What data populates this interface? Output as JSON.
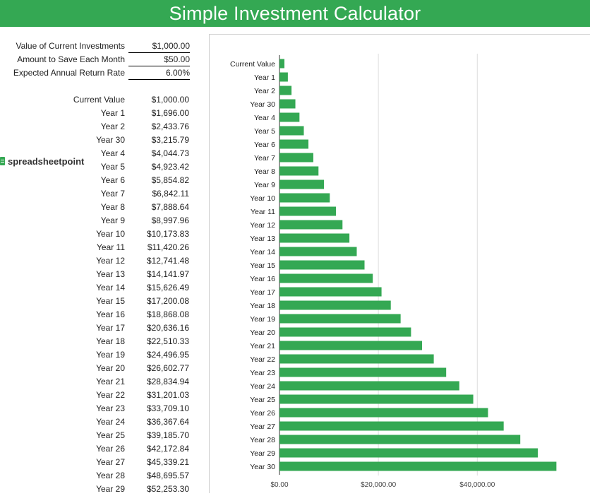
{
  "header": {
    "title": "Simple Investment Calculator"
  },
  "inputs": [
    {
      "label": "Value of Current Investments",
      "value": "$1,000.00"
    },
    {
      "label": "Amount to Save Each Month",
      "value": "$50.00"
    },
    {
      "label": "Expected Annual Return Rate",
      "value": "6.00%"
    }
  ],
  "brand": {
    "text": "spreadsheetpoint"
  },
  "table": {
    "rows": [
      {
        "label": "Current Value",
        "value": "$1,000.00"
      },
      {
        "label": "Year 1",
        "value": "$1,696.00"
      },
      {
        "label": "Year 2",
        "value": "$2,433.76"
      },
      {
        "label": "Year 30",
        "value": "$3,215.79"
      },
      {
        "label": "Year 4",
        "value": "$4,044.73"
      },
      {
        "label": "Year 5",
        "value": "$4,923.42"
      },
      {
        "label": "Year 6",
        "value": "$5,854.82"
      },
      {
        "label": "Year 7",
        "value": "$6,842.11"
      },
      {
        "label": "Year 8",
        "value": "$7,888.64"
      },
      {
        "label": "Year 9",
        "value": "$8,997.96"
      },
      {
        "label": "Year 10",
        "value": "$10,173.83"
      },
      {
        "label": "Year 11",
        "value": "$11,420.26"
      },
      {
        "label": "Year 12",
        "value": "$12,741.48"
      },
      {
        "label": "Year 13",
        "value": "$14,141.97"
      },
      {
        "label": "Year 14",
        "value": "$15,626.49"
      },
      {
        "label": "Year 15",
        "value": "$17,200.08"
      },
      {
        "label": "Year 16",
        "value": "$18,868.08"
      },
      {
        "label": "Year 17",
        "value": "$20,636.16"
      },
      {
        "label": "Year 18",
        "value": "$22,510.33"
      },
      {
        "label": "Year 19",
        "value": "$24,496.95"
      },
      {
        "label": "Year 20",
        "value": "$26,602.77"
      },
      {
        "label": "Year 21",
        "value": "$28,834.94"
      },
      {
        "label": "Year 22",
        "value": "$31,201.03"
      },
      {
        "label": "Year 23",
        "value": "$33,709.10"
      },
      {
        "label": "Year 24",
        "value": "$36,367.64"
      },
      {
        "label": "Year 25",
        "value": "$39,185.70"
      },
      {
        "label": "Year 26",
        "value": "$42,172.84"
      },
      {
        "label": "Year 27",
        "value": "$45,339.21"
      },
      {
        "label": "Year 28",
        "value": "$48,695.57"
      },
      {
        "label": "Year 29",
        "value": "$52,253.30"
      }
    ]
  },
  "colors": {
    "accent": "#34a853",
    "bar": "#34a853",
    "grid": "#dddddd"
  },
  "chart_data": {
    "type": "bar",
    "orientation": "horizontal",
    "categories": [
      "Current Value",
      "Year 1",
      "Year 2",
      "Year 30",
      "Year 4",
      "Year 5",
      "Year 6",
      "Year 7",
      "Year 8",
      "Year 9",
      "Year 10",
      "Year 11",
      "Year 12",
      "Year 13",
      "Year 14",
      "Year 15",
      "Year 16",
      "Year 17",
      "Year 18",
      "Year 19",
      "Year 20",
      "Year 21",
      "Year 22",
      "Year 23",
      "Year 24",
      "Year 25",
      "Year 26",
      "Year 27",
      "Year 28",
      "Year 29",
      "Year 30"
    ],
    "values": [
      1000,
      1696,
      2433.76,
      3215.79,
      4044.73,
      4923.42,
      5854.82,
      6842.11,
      7888.64,
      8997.96,
      10173.83,
      11420.26,
      12741.48,
      14141.97,
      15626.49,
      17200.08,
      18868.08,
      20636.16,
      22510.33,
      24496.95,
      26602.77,
      28834.94,
      31201.03,
      33709.1,
      36367.64,
      39185.7,
      42172.84,
      45339.21,
      48695.57,
      52253.3,
      56000
    ],
    "xticks": [
      {
        "value": 0,
        "label": "$0.00"
      },
      {
        "value": 20000,
        "label": "$20,000.00"
      },
      {
        "value": 40000,
        "label": "$40,000.00"
      }
    ],
    "xlim": [
      0,
      58800
    ],
    "grid": true,
    "legend": "none"
  }
}
